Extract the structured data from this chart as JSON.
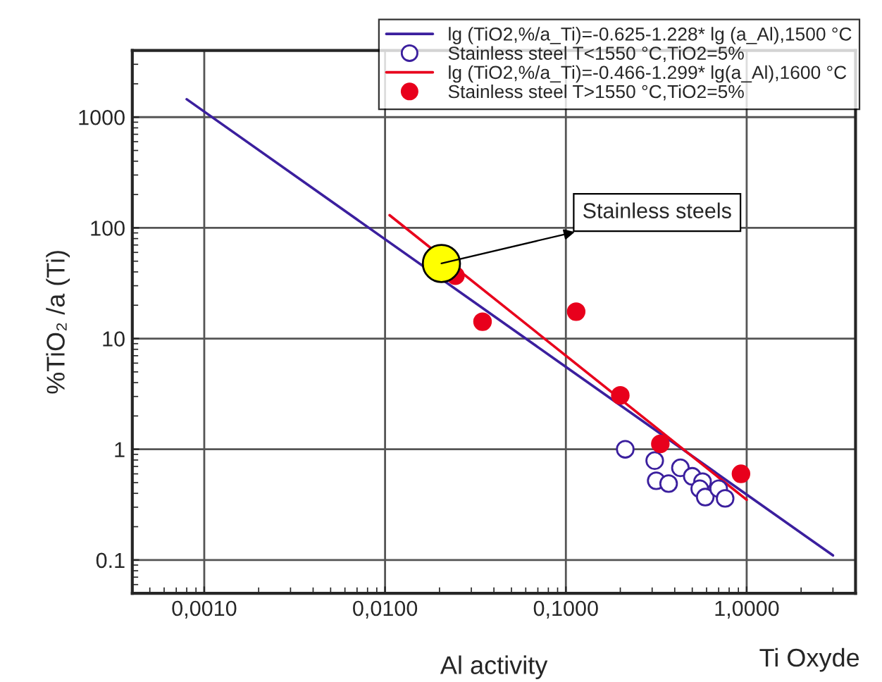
{
  "chart_data": {
    "type": "scatter",
    "xlabel": "Al activity",
    "ylabel": "%TiO₂ /a (Ti)",
    "log": "xy",
    "grid": true,
    "legend": "top right",
    "xlim": [
      0.0004,
      4
    ],
    "ylim": [
      0.05,
      4000
    ],
    "xticks": [
      {
        "value": 0.001,
        "label": "0,0010"
      },
      {
        "value": 0.01,
        "label": "0,0100"
      },
      {
        "value": 0.1,
        "label": "0,1000"
      },
      {
        "value": 1,
        "label": "1,0000"
      }
    ],
    "yticks": [
      0.1,
      1,
      10,
      100,
      1000
    ],
    "series": [
      {
        "name": "lg (TiO2,%/a_Ti)=-0.625-1.228* lg (a_Al),1500 °C",
        "type": "line",
        "color": "#3b1f9e",
        "marker": "none",
        "x": [
          0.0008,
          3.0
        ],
        "values": [
          1450,
          0.11
        ]
      },
      {
        "name": "Stainless steel T<1550 °C,TiO2=5%",
        "color": "#3b1f9e",
        "marker": "circle",
        "x": [
          0.213,
          0.31,
          0.316,
          0.37,
          0.43,
          0.5,
          0.57,
          0.55,
          0.59,
          0.7,
          0.76
        ],
        "values": [
          1.0,
          0.79,
          0.52,
          0.49,
          0.68,
          0.57,
          0.51,
          0.44,
          0.37,
          0.44,
          0.36
        ]
      },
      {
        "name": "lg (TiO2,%/a_Ti)=-0.466-1.299* lg(a_Al),1600 °C",
        "type": "line",
        "color": "#e8001c",
        "marker": "none",
        "x": [
          0.0106,
          1.0
        ],
        "values": [
          130,
          0.35
        ]
      },
      {
        "name": "Stainless steel T>1550 °C,TiO2=5%",
        "color": "#e8001c",
        "marker": "circle",
        "x": [
          0.0245,
          0.0346,
          0.114,
          0.2,
          0.333,
          0.93
        ],
        "values": [
          37,
          14.2,
          17.5,
          3.07,
          1.12,
          0.6
        ]
      },
      {
        "color": "#ffff00",
        "marker": "circle",
        "x": [
          0.0205
        ],
        "values": [
          47.7
        ]
      }
    ],
    "annotations": [
      {
        "text": "Stainless steels",
        "x": 0.0205,
        "y": 47.7
      },
      "Ti Oxyde"
    ]
  }
}
